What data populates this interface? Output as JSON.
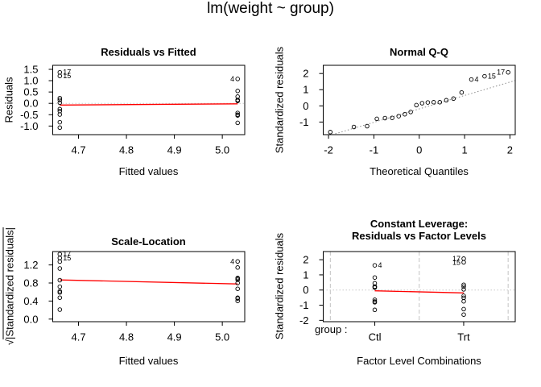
{
  "figure_title": "lm(weight ~ group)",
  "colors": {
    "trend_red": "#ff0000",
    "reference_gray": "#c8c8c8",
    "qq_line_gray": "#8c8c8c",
    "divider_gray": "#c3c3c3",
    "foreground": "#000000",
    "background": "#ffffff"
  },
  "chart_data": [
    {
      "id": "residuals-vs-fitted",
      "type": "scatter",
      "title": "Residuals vs Fitted",
      "xlabel": "Fitted values",
      "ylabel": "Residuals",
      "xlim": [
        4.6462,
        5.0468
      ],
      "ylim": [
        -1.3794,
        1.6774
      ],
      "xticks": {
        "values": [
          4.7,
          4.8,
          4.9,
          5.0
        ],
        "labels": [
          "4.7",
          "4.8",
          "4.9",
          "5.0"
        ]
      },
      "yticks": {
        "values": [
          -1.0,
          -0.5,
          0.0,
          0.5,
          1.0,
          1.5
        ],
        "labels": [
          "-1.0",
          "-0.5",
          "0.0",
          "0.5",
          "1.0",
          "1.5"
        ]
      },
      "series": [
        {
          "name": "Trt",
          "x": 4.661,
          "y": [
            1.369,
            1.209,
            0.229,
            0.149,
            0.029,
            -0.251,
            -0.341,
            -0.491,
            -0.831,
            -1.071
          ]
        },
        {
          "name": "Ctl",
          "x": 5.032,
          "y": [
            1.078,
            0.548,
            0.298,
            0.148,
            0.138,
            0.108,
            -0.422,
            -0.502,
            -0.532,
            -0.862
          ]
        }
      ],
      "point_labels": [
        {
          "text": "17",
          "x": 4.661,
          "y": 1.369,
          "side": "right"
        },
        {
          "text": "15",
          "x": 4.661,
          "y": 1.209,
          "side": "right"
        },
        {
          "text": "4",
          "x": 5.032,
          "y": 1.078,
          "side": "left"
        }
      ],
      "ref_lines": [
        {
          "kind": "h",
          "at": 0,
          "color": "#c8c8c8",
          "dash": "dotted"
        }
      ],
      "trend_line": {
        "color": "#ff0000",
        "pts": [
          [
            4.661,
            -0.075
          ],
          [
            5.032,
            -0.02
          ]
        ]
      }
    },
    {
      "id": "normal-qq",
      "type": "scatter",
      "title": "Normal Q-Q",
      "xlabel": "Theoretical Quantiles",
      "ylabel": "Standardized residuals",
      "xlim": [
        -2.1168,
        2.1168
      ],
      "ylim": [
        -1.7798,
        2.5078
      ],
      "xticks": {
        "values": [
          -2,
          -1,
          0,
          1,
          2
        ],
        "labels": [
          "-2",
          "-1",
          "0",
          "1",
          "2"
        ]
      },
      "yticks": {
        "values": [
          -1,
          0,
          1,
          2
        ],
        "labels": [
          "-1",
          "0",
          "1",
          "2"
        ]
      },
      "points": [
        [
          -1.96,
          -1.621
        ],
        [
          -1.44,
          -1.305
        ],
        [
          -1.15,
          -1.258
        ],
        [
          -0.935,
          -0.805
        ],
        [
          -0.755,
          -0.76
        ],
        [
          -0.598,
          -0.743
        ],
        [
          -0.454,
          -0.639
        ],
        [
          -0.319,
          -0.516
        ],
        [
          -0.189,
          -0.38
        ],
        [
          -0.063,
          0.044
        ],
        [
          0.063,
          0.164
        ],
        [
          0.189,
          0.209
        ],
        [
          0.319,
          0.224
        ],
        [
          0.454,
          0.226
        ],
        [
          0.598,
          0.347
        ],
        [
          0.755,
          0.451
        ],
        [
          0.935,
          0.829
        ],
        [
          1.15,
          1.632
        ],
        [
          1.44,
          1.83
        ],
        [
          1.96,
          2.072
        ]
      ],
      "point_labels": [
        {
          "text": "4",
          "x": 1.15,
          "y": 1.632,
          "side": "right"
        },
        {
          "text": "15",
          "x": 1.44,
          "y": 1.83,
          "side": "right"
        },
        {
          "text": "17",
          "x": 1.96,
          "y": 2.072,
          "side": "left"
        }
      ],
      "ref_lines": [
        {
          "kind": "seg",
          "x1": -1.918,
          "y1": -1.78,
          "x2": 2.117,
          "y2": 1.57,
          "color": "#8c8c8c",
          "dash": "dotted"
        }
      ]
    },
    {
      "id": "scale-location",
      "type": "scatter",
      "title": "Scale-Location",
      "xlabel": "Fitted values",
      "ylabel": "√|Standardized residuals|",
      "ylabel_prefix": "√",
      "ylabel_body": "|Standardized residuals|",
      "xlim": [
        4.6462,
        5.0468
      ],
      "ylim": [
        -0.0576,
        1.4966
      ],
      "xticks": {
        "values": [
          4.7,
          4.8,
          4.9,
          5.0
        ],
        "labels": [
          "4.7",
          "4.8",
          "4.9",
          "5.0"
        ]
      },
      "yticks": {
        "values": [
          0.0,
          0.4,
          0.8,
          1.2
        ],
        "labels": [
          "0.0",
          "0.4",
          "0.8",
          "1.2"
        ]
      },
      "series": [
        {
          "name": "Trt",
          "x": 4.661,
          "y": [
            1.439,
            1.353,
            1.273,
            1.121,
            0.862,
            0.718,
            0.616,
            0.589,
            0.475,
            0.21
          ]
        },
        {
          "name": "Ctl",
          "x": 5.032,
          "y": [
            1.277,
            1.142,
            0.911,
            0.897,
            0.872,
            0.799,
            0.672,
            0.473,
            0.457,
            0.404
          ]
        }
      ],
      "point_labels": [
        {
          "text": "17",
          "x": 4.661,
          "y": 1.439,
          "side": "right"
        },
        {
          "text": "15",
          "x": 4.661,
          "y": 1.353,
          "side": "right"
        },
        {
          "text": "4",
          "x": 5.032,
          "y": 1.277,
          "side": "left"
        }
      ],
      "ref_lines": [],
      "trend_line": {
        "color": "#ff0000",
        "pts": [
          [
            4.661,
            0.868
          ],
          [
            5.032,
            0.779
          ]
        ]
      }
    },
    {
      "id": "residuals-vs-factor-levels",
      "type": "scatter",
      "title": "Constant Leverage:\nResiduals vs Factor Levels",
      "xlabel": "Factor Level Combinations",
      "ylabel": "Standardized residuals",
      "group_label": "group :",
      "xlim": [
        0.42,
        2.58
      ],
      "ylim": [
        -2.0878,
        2.5388
      ],
      "xticks": {
        "values": [
          1,
          2
        ],
        "labels": [
          "Ctl",
          "Trt"
        ]
      },
      "yticks": {
        "values": [
          -2,
          -1,
          0,
          1,
          2
        ],
        "labels": [
          "-2",
          "-1",
          "0",
          "1",
          "2"
        ]
      },
      "series": [
        {
          "name": "Ctl",
          "x": 1,
          "y": [
            1.632,
            0.829,
            0.451,
            0.224,
            0.209,
            0.164,
            -0.639,
            -0.76,
            -0.805,
            -1.305
          ]
        },
        {
          "name": "Trt",
          "x": 2,
          "y": [
            2.072,
            1.83,
            0.347,
            0.226,
            0.044,
            -0.38,
            -0.516,
            -0.743,
            -1.258,
            -1.621
          ]
        }
      ],
      "point_labels": [
        {
          "text": "4",
          "x": 1,
          "y": 1.632,
          "side": "right"
        },
        {
          "text": "17",
          "x": 2,
          "y": 2.072,
          "side": "left"
        },
        {
          "text": "15",
          "x": 2,
          "y": 1.83,
          "side": "left"
        }
      ],
      "ref_lines": [
        {
          "kind": "v",
          "at": 0.5,
          "color": "#c3c3c3",
          "dash": "dashed"
        },
        {
          "kind": "v",
          "at": 1.5,
          "color": "#c3c3c3",
          "dash": "dashed"
        },
        {
          "kind": "v",
          "at": 2.5,
          "color": "#c3c3c3",
          "dash": "dashed"
        },
        {
          "kind": "h",
          "at": 0,
          "color": "#c8c8c8",
          "dash": "dotted"
        }
      ],
      "trend_line": {
        "color": "#ff0000",
        "pts": [
          [
            1,
            -0.05
          ],
          [
            2,
            -0.19
          ]
        ]
      }
    }
  ]
}
